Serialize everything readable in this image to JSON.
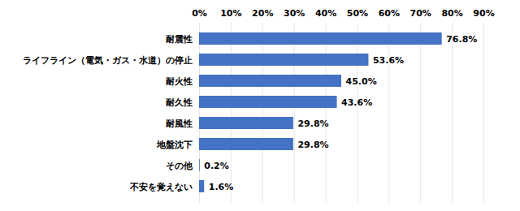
{
  "chart_data": {
    "type": "bar",
    "orientation": "horizontal",
    "categories": [
      "耐震性",
      "ライフライン（電気・ガス・水道）の停止",
      "耐火性",
      "耐久性",
      "耐風性",
      "地盤沈下",
      "その他",
      "不安を覚えない"
    ],
    "values": [
      76.8,
      53.6,
      45.0,
      43.6,
      29.8,
      29.8,
      0.2,
      1.6
    ],
    "value_labels": [
      "76.8%",
      "53.6%",
      "45.0%",
      "43.6%",
      "29.8%",
      "29.8%",
      "0.2%",
      "1.6%"
    ],
    "color": "#4472c4",
    "xlim": [
      0,
      90
    ],
    "xticks": [
      {
        "value": 0,
        "label": "0%"
      },
      {
        "value": 10,
        "label": "10%"
      },
      {
        "value": 20,
        "label": "20%"
      },
      {
        "value": 30,
        "label": "30%"
      },
      {
        "value": 40,
        "label": "40%"
      },
      {
        "value": 50,
        "label": "50%"
      },
      {
        "value": 60,
        "label": "60%"
      },
      {
        "value": 70,
        "label": "70%"
      },
      {
        "value": 80,
        "label": "80%"
      },
      {
        "value": 90,
        "label": "90%"
      }
    ],
    "grid": true,
    "data_labels": true
  }
}
